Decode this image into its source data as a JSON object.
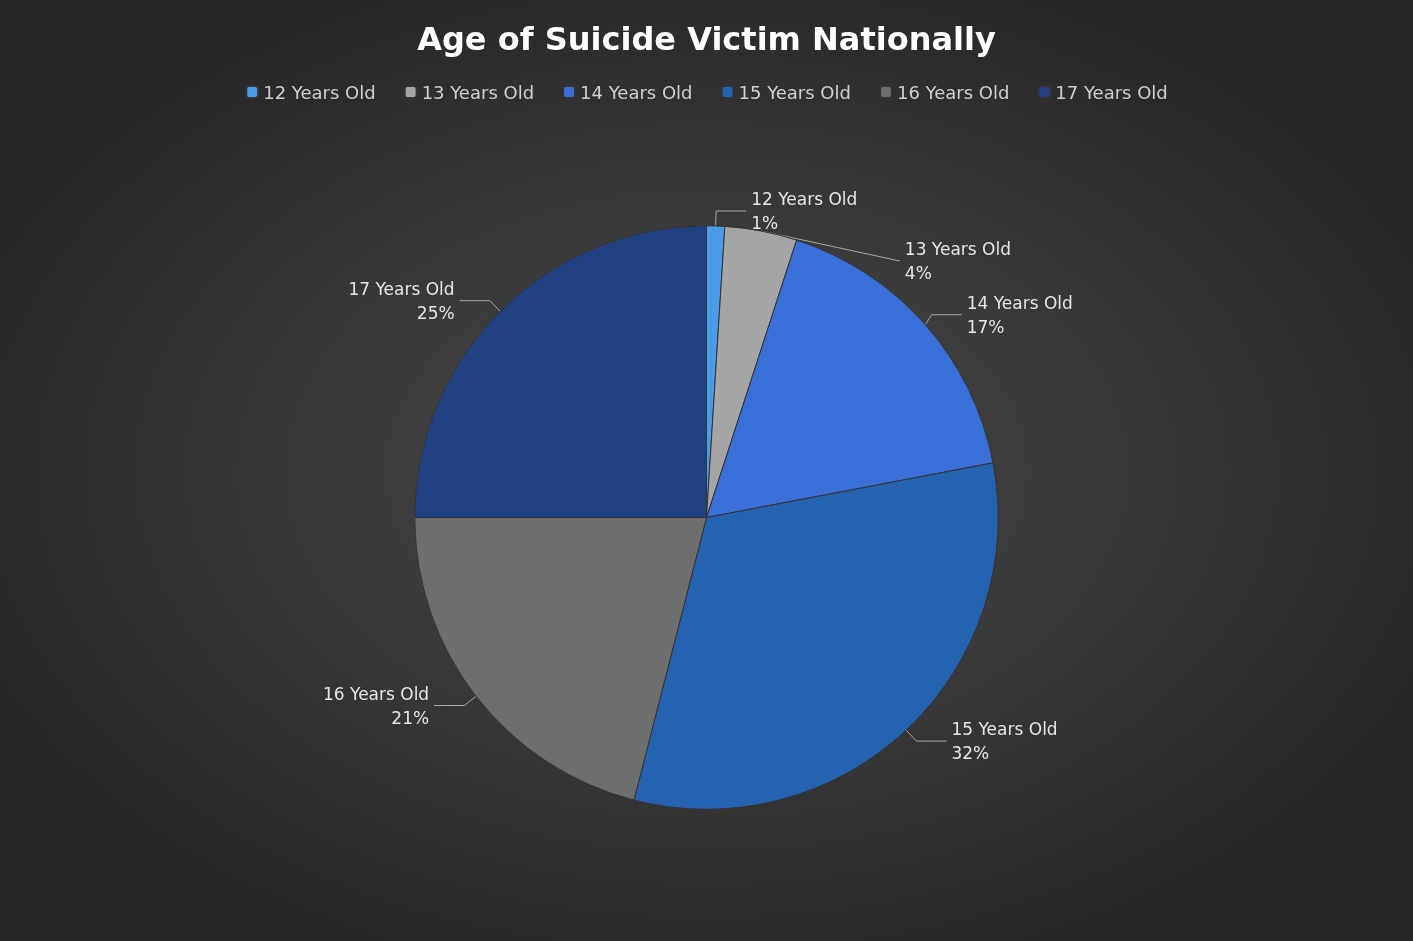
{
  "chart_data": {
    "type": "pie",
    "title": "Age of Suicide Victim Nationally",
    "categories": [
      "12 Years Old",
      "13 Years Old",
      "14 Years Old",
      "15 Years Old",
      "16 Years Old",
      "17 Years Old"
    ],
    "values": [
      1,
      4,
      17,
      32,
      21,
      25
    ],
    "value_labels": [
      "1%",
      "4%",
      "17%",
      "32%",
      "21%",
      "25%"
    ],
    "colors": [
      "#4a9be8",
      "#a5a5a5",
      "#3a6fd8",
      "#2563b0",
      "#6e6e6e",
      "#21407f"
    ],
    "legend": "top"
  }
}
